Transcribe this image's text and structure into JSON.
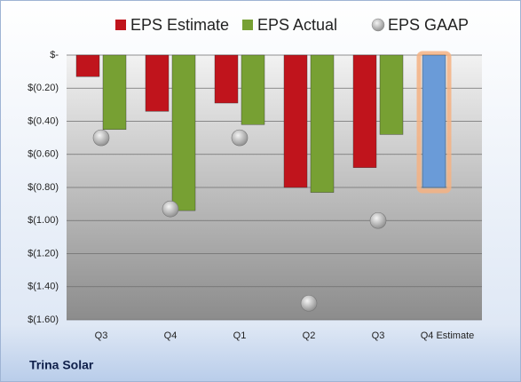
{
  "chart_data": {
    "type": "bar",
    "footer": "Trina Solar",
    "categories": [
      "Q3",
      "Q4",
      "Q1",
      "Q2",
      "Q3",
      "Q4 Estimate"
    ],
    "series": [
      {
        "name": "EPS Estimate",
        "color": "#c0141c",
        "values": [
          -0.13,
          -0.34,
          -0.29,
          -0.8,
          -0.68,
          -0.8
        ],
        "colors": [
          "#c0141c",
          "#c0141c",
          "#c0141c",
          "#c0141c",
          "#c0141c",
          "#6a9bd8"
        ]
      },
      {
        "name": "EPS Actual",
        "color": "#77a033",
        "values": [
          -0.45,
          -0.94,
          -0.42,
          -0.83,
          -0.48,
          null
        ]
      },
      {
        "name": "EPS GAAP",
        "color": "#b8b8b8",
        "marker": "circle",
        "values": [
          -0.5,
          -0.93,
          -0.5,
          -1.5,
          -1.0,
          null
        ]
      }
    ],
    "highlight_glow": "#f4b183",
    "ylim": [
      -1.6,
      0
    ],
    "yticks": [
      {
        "value": 0,
        "label": "$-"
      },
      {
        "value": -0.2,
        "label": "$(0.20)"
      },
      {
        "value": -0.4,
        "label": "$(0.40)"
      },
      {
        "value": -0.6,
        "label": "$(0.60)"
      },
      {
        "value": -0.8,
        "label": "$(0.80)"
      },
      {
        "value": -1.0,
        "label": "$(1.00)"
      },
      {
        "value": -1.2,
        "label": "$(1.20)"
      },
      {
        "value": -1.4,
        "label": "$(1.40)"
      },
      {
        "value": -1.6,
        "label": "$(1.60)"
      }
    ],
    "grid": true
  }
}
